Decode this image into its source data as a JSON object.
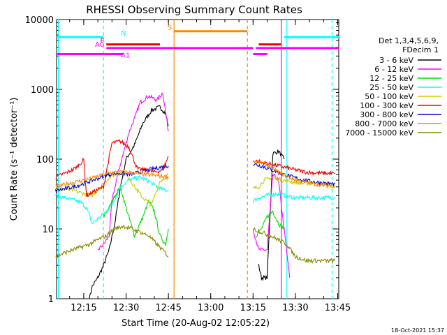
{
  "chart_data": {
    "type": "line",
    "title": "RHESSI Observing Summary Count Rates",
    "xlabel": "Start Time (20-Aug-02 12:05:22)",
    "ylabel": "Count Rate (s⁻¹ detector⁻¹)",
    "y_scale": "log",
    "ylim": [
      1,
      10000
    ],
    "xlim": [
      "12:05:22",
      "13:45:22"
    ],
    "x_ticks": [
      "12:15",
      "12:30",
      "12:45",
      "13:00",
      "13:15",
      "13:30",
      "13:45"
    ],
    "y_ticks": [
      "1",
      "10",
      "100",
      "1000",
      "10000"
    ],
    "timestamp": "18-Oct-2021 15:37",
    "legend": {
      "title": [
        "Det 1,3,4,5,6,9,",
        "FDecim 1"
      ],
      "placement": "right",
      "entries": [
        {
          "label": "3 - 6 keV",
          "color": "#000000"
        },
        {
          "label": "6 - 12 keV",
          "color": "#ff00ff"
        },
        {
          "label": "12 - 25 keV",
          "color": "#00dd00"
        },
        {
          "label": "25 - 50 keV",
          "color": "#00ffff"
        },
        {
          "label": "50 - 100 keV",
          "color": "#cccc00"
        },
        {
          "label": "100 - 300 keV",
          "color": "#ee0000"
        },
        {
          "label": "300 - 800 keV",
          "color": "#0000dd"
        },
        {
          "label": "800 - 7000 keV",
          "color": "#ff8800"
        },
        {
          "label": "7000 - 15000 keV",
          "color": "#888800"
        }
      ]
    },
    "flags": [
      {
        "label": "N",
        "color": "#00ffff",
        "y": 5600,
        "segments": [
          [
            "12:05:22",
            "12:22:00"
          ],
          [
            "13:26:00",
            "13:45:22"
          ]
        ]
      },
      {
        "label": "F",
        "color": "#ee0000",
        "y": 4400,
        "segments": [
          [
            "12:23:00",
            "12:42:00"
          ],
          [
            "13:17:00",
            "13:25:00"
          ]
        ]
      },
      {
        "label": "A0",
        "color": "#ff00ff",
        "y": 3900,
        "segments": [
          [
            "12:23:00",
            "13:15:00"
          ],
          [
            "13:16:00",
            "13:45:22"
          ]
        ]
      },
      {
        "label": "A1",
        "color": "#ff00ff",
        "y": 3200,
        "segments": [
          [
            "12:05:22",
            "12:29:00"
          ],
          [
            "13:15:00",
            "13:20:00"
          ]
        ]
      },
      {
        "label": "S",
        "color": "#ff8800",
        "y": 6800,
        "segments": [
          [
            "12:47:00",
            "13:13:00"
          ]
        ]
      }
    ],
    "vertical_markers": [
      {
        "time": "12:06:00",
        "color": "#00ffff",
        "style": "solid"
      },
      {
        "time": "12:22:00",
        "color": "#00ffff",
        "style": "dashed"
      },
      {
        "time": "12:47:00",
        "color": "#ff8800",
        "style": "solid"
      },
      {
        "time": "13:13:00",
        "color": "#ff8800",
        "style": "dashed"
      },
      {
        "time": "13:25:00",
        "color": "#ff00ff",
        "style": "solid"
      },
      {
        "time": "13:27:00",
        "color": "#00ffff",
        "style": "solid"
      },
      {
        "time": "13:43:00",
        "color": "#00ffff",
        "style": "dashed"
      }
    ],
    "series": [
      {
        "name": "3 - 6 keV",
        "color": "#000000",
        "points": [
          [
            "12:17",
            1
          ],
          [
            "12:18",
            1.5
          ],
          [
            "12:20",
            2
          ],
          [
            "12:22",
            3
          ],
          [
            "12:24",
            5
          ],
          [
            "12:26",
            12
          ],
          [
            "12:28",
            40
          ],
          [
            "12:30",
            100
          ],
          [
            "12:33",
            160
          ],
          [
            "12:36",
            330
          ],
          [
            "12:39",
            500
          ],
          [
            "12:42",
            560
          ],
          [
            "12:44",
            450
          ],
          [
            "12:45",
            300
          ]
        ],
        "points2": [
          [
            "13:17",
            3
          ],
          [
            "13:18",
            2
          ],
          [
            "13:20",
            2
          ],
          [
            "13:22",
            120
          ],
          [
            "13:24",
            130
          ],
          [
            "13:26",
            100
          ]
        ]
      },
      {
        "name": "6 - 12 keV",
        "color": "#ff00ff",
        "points": [
          [
            "12:20",
            5
          ],
          [
            "12:22",
            6
          ],
          [
            "12:24",
            8
          ],
          [
            "12:25",
            25
          ],
          [
            "12:27",
            60
          ],
          [
            "12:29",
            120
          ],
          [
            "12:31",
            240
          ],
          [
            "12:33",
            380
          ],
          [
            "12:35",
            650
          ],
          [
            "12:38",
            800
          ],
          [
            "12:41",
            700
          ],
          [
            "12:43",
            900
          ],
          [
            "12:45",
            250
          ]
        ],
        "points2": [
          [
            "13:15",
            10
          ],
          [
            "13:17",
            5
          ],
          [
            "13:20",
            5
          ],
          [
            "13:22",
            60
          ],
          [
            "13:24",
            50
          ],
          [
            "13:26",
            10
          ],
          [
            "13:28",
            2
          ]
        ]
      },
      {
        "name": "12 - 25 keV",
        "color": "#00dd00",
        "points": [
          [
            "12:22",
            15
          ],
          [
            "12:24",
            20
          ],
          [
            "12:26",
            30
          ],
          [
            "12:28",
            40
          ],
          [
            "12:30",
            20
          ],
          [
            "12:33",
            8
          ],
          [
            "12:36",
            15
          ],
          [
            "12:38",
            25
          ],
          [
            "12:40",
            18
          ],
          [
            "12:42",
            8
          ],
          [
            "12:44",
            6
          ],
          [
            "12:45",
            10
          ]
        ],
        "points2": [
          [
            "13:16",
            8
          ],
          [
            "13:18",
            10
          ],
          [
            "13:20",
            15
          ],
          [
            "13:22",
            18
          ],
          [
            "13:24",
            12
          ],
          [
            "13:26",
            10
          ]
        ]
      },
      {
        "name": "25 - 50 keV",
        "color": "#00ffff",
        "points": [
          [
            "12:05",
            30
          ],
          [
            "12:08",
            28
          ],
          [
            "12:11",
            26
          ],
          [
            "12:14",
            24
          ],
          [
            "12:16",
            20
          ],
          [
            "12:18",
            12
          ],
          [
            "12:21",
            15
          ],
          [
            "12:23",
            18
          ],
          [
            "12:25",
            22
          ],
          [
            "12:28",
            40
          ],
          [
            "12:31",
            50
          ],
          [
            "12:35",
            55
          ],
          [
            "12:38",
            48
          ],
          [
            "12:42",
            38
          ],
          [
            "12:45",
            35
          ]
        ],
        "points2": [
          [
            "13:15",
            25
          ],
          [
            "13:17",
            28
          ],
          [
            "13:20",
            30
          ],
          [
            "13:23",
            32
          ],
          [
            "13:26",
            30
          ],
          [
            "13:30",
            28
          ],
          [
            "13:35",
            28
          ],
          [
            "13:40",
            28
          ],
          [
            "13:44",
            28
          ]
        ]
      },
      {
        "name": "50 - 100 keV",
        "color": "#cccc00",
        "points": [
          [
            "12:05",
            38
          ],
          [
            "12:09",
            37
          ],
          [
            "12:12",
            35
          ],
          [
            "12:15",
            32
          ],
          [
            "12:18",
            30
          ],
          [
            "12:21",
            40
          ],
          [
            "12:24",
            55
          ],
          [
            "12:27",
            62
          ],
          [
            "12:30",
            63
          ],
          [
            "12:33",
            40
          ],
          [
            "12:36",
            28
          ],
          [
            "12:39",
            22
          ],
          [
            "12:42",
            48
          ],
          [
            "12:45",
            60
          ]
        ],
        "points2": [
          [
            "13:15",
            38
          ],
          [
            "13:17",
            40
          ],
          [
            "13:19",
            50
          ],
          [
            "13:22",
            55
          ],
          [
            "13:25",
            50
          ],
          [
            "13:28",
            48
          ],
          [
            "13:32",
            45
          ],
          [
            "13:36",
            45
          ],
          [
            "13:40",
            43
          ],
          [
            "13:44",
            42
          ]
        ]
      },
      {
        "name": "100 - 300 keV",
        "color": "#ee0000",
        "points": [
          [
            "12:05",
            55
          ],
          [
            "12:08",
            62
          ],
          [
            "12:11",
            70
          ],
          [
            "12:13",
            80
          ],
          [
            "12:15",
            98
          ],
          [
            "12:16",
            30
          ],
          [
            "12:19",
            35
          ],
          [
            "12:22",
            40
          ],
          [
            "12:25",
            170
          ],
          [
            "12:28",
            180
          ],
          [
            "12:31",
            150
          ],
          [
            "12:34",
            72
          ],
          [
            "12:37",
            70
          ],
          [
            "12:40",
            65
          ],
          [
            "12:43",
            70
          ],
          [
            "12:45",
            110
          ]
        ],
        "points2": [
          [
            "13:15",
            95
          ],
          [
            "13:18",
            90
          ],
          [
            "13:21",
            85
          ],
          [
            "13:24",
            80
          ],
          [
            "13:27",
            75
          ],
          [
            "13:30",
            70
          ],
          [
            "13:34",
            65
          ],
          [
            "13:38",
            63
          ],
          [
            "13:44",
            62
          ]
        ]
      },
      {
        "name": "300 - 800 keV",
        "color": "#0000dd",
        "points": [
          [
            "12:05",
            35
          ],
          [
            "12:09",
            38
          ],
          [
            "12:13",
            42
          ],
          [
            "12:17",
            48
          ],
          [
            "12:21",
            55
          ],
          [
            "12:25",
            62
          ],
          [
            "12:28",
            63
          ],
          [
            "12:31",
            60
          ],
          [
            "12:35",
            65
          ],
          [
            "12:38",
            70
          ],
          [
            "12:41",
            75
          ],
          [
            "12:45",
            80
          ]
        ],
        "points2": [
          [
            "13:15",
            85
          ],
          [
            "13:18",
            80
          ],
          [
            "13:21",
            72
          ],
          [
            "13:25",
            62
          ],
          [
            "13:29",
            55
          ],
          [
            "13:33",
            50
          ],
          [
            "13:37",
            47
          ],
          [
            "13:41",
            45
          ],
          [
            "13:44",
            44
          ]
        ]
      },
      {
        "name": "800 - 7000 keV",
        "color": "#ff8800",
        "points": [
          [
            "12:05",
            40
          ],
          [
            "12:09",
            44
          ],
          [
            "12:13",
            48
          ],
          [
            "12:17",
            52
          ],
          [
            "12:21",
            58
          ],
          [
            "12:25",
            64
          ],
          [
            "12:29",
            66
          ],
          [
            "12:33",
            63
          ],
          [
            "12:37",
            60
          ],
          [
            "12:41",
            58
          ],
          [
            "12:45",
            55
          ]
        ],
        "points2": [
          [
            "13:15",
            95
          ],
          [
            "13:18",
            88
          ],
          [
            "13:21",
            78
          ],
          [
            "13:25",
            62
          ],
          [
            "13:29",
            52
          ],
          [
            "13:33",
            47
          ],
          [
            "13:37",
            44
          ],
          [
            "13:41",
            42
          ],
          [
            "13:44",
            41
          ]
        ]
      },
      {
        "name": "7000 - 15000 keV",
        "color": "#888800",
        "points": [
          [
            "12:05",
            4
          ],
          [
            "12:08",
            4.5
          ],
          [
            "12:11",
            5
          ],
          [
            "12:14",
            5.5
          ],
          [
            "12:17",
            6
          ],
          [
            "12:20",
            7
          ],
          [
            "12:23",
            8
          ],
          [
            "12:26",
            10
          ],
          [
            "12:29",
            11
          ],
          [
            "12:32",
            10
          ],
          [
            "12:35",
            9
          ],
          [
            "12:38",
            8
          ],
          [
            "12:41",
            6
          ],
          [
            "12:44",
            4.5
          ],
          [
            "12:45",
            4
          ]
        ],
        "points2": [
          [
            "13:15",
            10
          ],
          [
            "13:18",
            9
          ],
          [
            "13:21",
            8
          ],
          [
            "13:24",
            7
          ],
          [
            "13:27",
            6
          ],
          [
            "13:30",
            4
          ],
          [
            "13:34",
            3.5
          ],
          [
            "13:38",
            3.5
          ],
          [
            "13:44",
            3.5
          ]
        ]
      }
    ]
  }
}
